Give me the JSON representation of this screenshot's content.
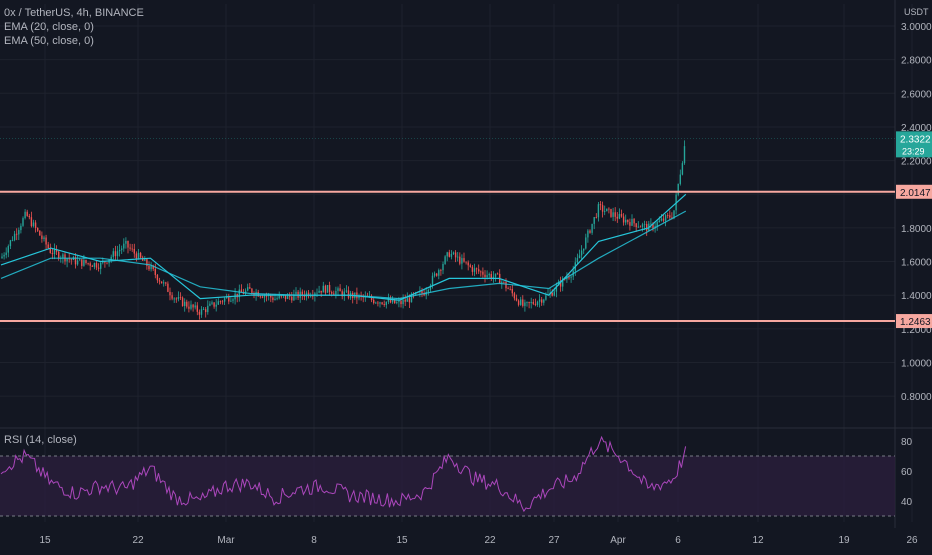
{
  "header": {
    "symbol_line": "0x / TetherUS, 4h, BINANCE",
    "indicator_1": "EMA (20, close, 0)",
    "indicator_2": "EMA (50, close, 0)",
    "rsi_title": "RSI (14, close)"
  },
  "currency_label": "USDT",
  "price_scale": {
    "ticks": [
      3.0,
      2.8,
      2.6,
      2.4,
      2.2,
      2.0,
      1.8,
      1.6,
      1.4,
      1.2,
      1.0,
      0.8
    ],
    "tick_labels": [
      "3.0000",
      "2.8000",
      "2.6000",
      "2.4000",
      "2.2000",
      "2.0000",
      "1.8000",
      "1.6000",
      "1.4000",
      "1.2000",
      "1.0000",
      "0.8000"
    ]
  },
  "rsi_scale": {
    "ticks": [
      80,
      60,
      40
    ],
    "upper_band": 70,
    "lower_band": 30
  },
  "time_axis": {
    "labels": [
      "15",
      "22",
      "Mar",
      "8",
      "15",
      "22",
      "27",
      "Apr",
      "6",
      "12",
      "19",
      "26"
    ]
  },
  "horizontal_lines": [
    {
      "value": 2.0147,
      "label": "2.0147"
    },
    {
      "value": 1.2463,
      "label": "1.2463"
    }
  ],
  "last_price": {
    "value": 2.3322,
    "label": "2.3322",
    "countdown": "23:29"
  },
  "colors": {
    "background": "#131722",
    "grid": "#1e222d",
    "up_candle": "#26a69a",
    "down_candle": "#ef5350",
    "ema": "#26c6da",
    "level_line": "#f7a8a0",
    "level_tag": "#f7a8a0",
    "last_price_tag": "#26a69a",
    "rsi_line": "#ab47bc",
    "rsi_band_fill": "#2a1e3c",
    "axis_text": "#b2b5be"
  },
  "chart_data": [
    {
      "type": "candlestick",
      "title": "0x / TetherUS, 4h, BINANCE",
      "ylabel": "USDT",
      "ylim": [
        0.7,
        3.08
      ],
      "series": [
        {
          "name": "price",
          "note_points": "approximate close path",
          "x": [
            "Feb 13",
            "Feb 15",
            "Feb 17",
            "Feb 19",
            "Feb 21",
            "Feb 23",
            "Feb 25",
            "Feb 27",
            "Mar 1",
            "Mar 3",
            "Mar 5",
            "Mar 7",
            "Mar 9",
            "Mar 11",
            "Mar 13",
            "Mar 15",
            "Mar 17",
            "Mar 19",
            "Mar 21",
            "Mar 23",
            "Mar 25",
            "Mar 27",
            "Mar 29",
            "Mar 31",
            "Apr 2",
            "Apr 4",
            "Apr 6",
            "Apr 8",
            "Apr 9"
          ],
          "values": [
            1.62,
            1.88,
            1.66,
            1.6,
            1.58,
            1.7,
            1.56,
            1.38,
            1.3,
            1.38,
            1.43,
            1.38,
            1.4,
            1.44,
            1.4,
            1.37,
            1.35,
            1.42,
            1.65,
            1.55,
            1.5,
            1.33,
            1.4,
            1.55,
            1.92,
            1.85,
            1.8,
            1.88,
            2.33
          ]
        },
        {
          "name": "EMA (20, close, 0)",
          "x": [
            "Feb 13",
            "Feb 17",
            "Feb 21",
            "Feb 25",
            "Mar 1",
            "Mar 5",
            "Mar 9",
            "Mar 13",
            "Mar 17",
            "Mar 21",
            "Mar 25",
            "Mar 29",
            "Apr 2",
            "Apr 6",
            "Apr 9"
          ],
          "values": [
            1.58,
            1.68,
            1.6,
            1.62,
            1.38,
            1.4,
            1.4,
            1.4,
            1.37,
            1.5,
            1.5,
            1.4,
            1.72,
            1.8,
            2.0
          ]
        },
        {
          "name": "EMA (50, close, 0)",
          "x": [
            "Feb 13",
            "Feb 17",
            "Feb 21",
            "Feb 25",
            "Mar 1",
            "Mar 5",
            "Mar 9",
            "Mar 13",
            "Mar 17",
            "Mar 21",
            "Mar 25",
            "Mar 29",
            "Apr 2",
            "Apr 6",
            "Apr 9"
          ],
          "values": [
            1.5,
            1.62,
            1.62,
            1.58,
            1.45,
            1.41,
            1.4,
            1.4,
            1.38,
            1.44,
            1.47,
            1.44,
            1.62,
            1.78,
            1.9
          ]
        }
      ]
    },
    {
      "type": "line",
      "title": "RSI (14, close)",
      "ylim": [
        25,
        85
      ],
      "series": [
        {
          "name": "RSI (14, close)",
          "x": [
            "Feb 13",
            "Feb 15",
            "Feb 17",
            "Feb 19",
            "Feb 21",
            "Feb 23",
            "Feb 25",
            "Feb 27",
            "Mar 1",
            "Mar 3",
            "Mar 5",
            "Mar 7",
            "Mar 9",
            "Mar 11",
            "Mar 13",
            "Mar 15",
            "Mar 17",
            "Mar 19",
            "Mar 21",
            "Mar 23",
            "Mar 25",
            "Mar 27",
            "Mar 29",
            "Mar 31",
            "Apr 2",
            "Apr 4",
            "Apr 6",
            "Apr 8",
            "Apr 9"
          ],
          "values": [
            62,
            70,
            52,
            45,
            50,
            48,
            62,
            42,
            40,
            50,
            52,
            42,
            48,
            50,
            44,
            42,
            40,
            46,
            70,
            55,
            50,
            36,
            48,
            55,
            80,
            68,
            48,
            55,
            72
          ]
        }
      ]
    }
  ]
}
